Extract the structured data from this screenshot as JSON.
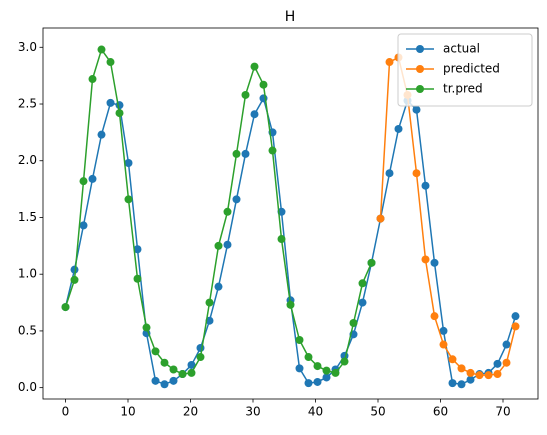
{
  "chart_data": {
    "type": "line",
    "title": "H",
    "x": [
      0,
      1.44,
      2.88,
      4.32,
      5.76,
      7.2,
      8.64,
      10.08,
      11.52,
      12.96,
      14.4,
      15.84,
      17.28,
      18.72,
      20.16,
      21.6,
      23.04,
      24.48,
      25.92,
      27.36,
      28.8,
      30.24,
      31.68,
      33.12,
      34.56,
      36,
      37.44,
      38.88,
      40.32,
      41.76,
      43.2,
      44.64,
      46.08,
      47.52,
      48.96,
      50.4,
      51.84,
      53.28,
      54.72,
      56.16,
      57.6,
      59.04,
      60.48,
      61.92,
      63.36,
      64.8,
      66.24,
      67.68,
      69.12,
      70.56,
      72
    ],
    "series": [
      {
        "name": "actual",
        "color": "#1f77b4",
        "values": [
          0.71,
          1.04,
          1.43,
          1.84,
          2.23,
          2.51,
          2.49,
          1.98,
          1.22,
          0.48,
          0.06,
          0.03,
          0.06,
          0.12,
          0.2,
          0.35,
          0.59,
          0.89,
          1.26,
          1.66,
          2.06,
          2.41,
          2.55,
          2.25,
          1.55,
          0.77,
          0.17,
          0.04,
          0.05,
          0.09,
          0.16,
          0.28,
          0.47,
          0.75,
          1.1,
          1.49,
          1.89,
          2.28,
          2.53,
          2.45,
          1.78,
          1.1,
          0.5,
          0.04,
          0.03,
          0.07,
          0.12,
          0.13,
          0.21,
          0.38,
          0.63
        ]
      },
      {
        "name": "predicted",
        "color": "#ff7f0e",
        "values": [
          null,
          null,
          null,
          null,
          null,
          null,
          null,
          null,
          null,
          null,
          null,
          null,
          null,
          null,
          null,
          null,
          null,
          null,
          null,
          null,
          null,
          null,
          null,
          null,
          null,
          null,
          null,
          null,
          null,
          null,
          null,
          null,
          null,
          null,
          null,
          1.49,
          2.87,
          2.91,
          2.58,
          1.89,
          1.13,
          0.63,
          0.38,
          0.25,
          0.17,
          0.13,
          0.11,
          0.11,
          0.12,
          0.22,
          0.54
        ]
      },
      {
        "name": "tr.pred",
        "color": "#2ca02c",
        "values": [
          0.71,
          0.95,
          1.82,
          2.72,
          2.98,
          2.87,
          2.42,
          1.66,
          0.96,
          0.53,
          0.32,
          0.22,
          0.16,
          0.12,
          0.13,
          0.27,
          0.75,
          1.25,
          1.55,
          2.06,
          2.58,
          2.83,
          2.67,
          2.09,
          1.31,
          0.73,
          0.42,
          0.27,
          0.19,
          0.15,
          0.13,
          0.23,
          0.57,
          0.92,
          1.1,
          null,
          null,
          null,
          null,
          null,
          null,
          null,
          null,
          null,
          null,
          null,
          null,
          null,
          null,
          null,
          null
        ]
      }
    ],
    "xlim": [
      -3.6,
      75.6
    ],
    "ylim": [
      -0.1,
      3.17
    ],
    "xticks": [
      0,
      10,
      20,
      30,
      40,
      50,
      60,
      70
    ],
    "yticks": [
      {
        "value": 0,
        "label": "0.0"
      },
      0.5,
      {
        "value": 1,
        "label": "1.0"
      },
      1.5,
      {
        "value": 2,
        "label": "2.0"
      },
      2.5,
      {
        "value": 3,
        "label": "3.0"
      }
    ],
    "grid": false,
    "legend": "upper right"
  }
}
